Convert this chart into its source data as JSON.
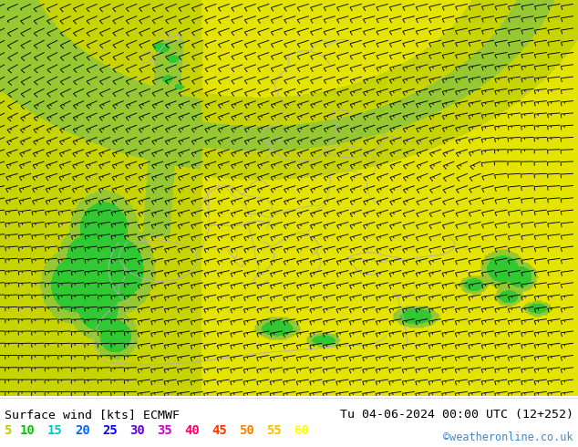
{
  "title_left": "Surface wind [kts] ECMWF",
  "title_right": "Tu 04-06-2024 00:00 UTC (12+252)",
  "credit": "©weatheronline.co.uk",
  "legend_values": [
    5,
    10,
    15,
    20,
    25,
    30,
    35,
    40,
    45,
    50,
    55,
    60
  ],
  "legend_colors": [
    "#c8c800",
    "#00c800",
    "#00c8c8",
    "#0064ff",
    "#0000ff",
    "#6400c8",
    "#c800c8",
    "#ff0064",
    "#ff3200",
    "#ff8200",
    "#ffbe00",
    "#ffff00"
  ],
  "color_levels": [
    0,
    5,
    10,
    15,
    20,
    25,
    30,
    35,
    40,
    45,
    50,
    55,
    60,
    200
  ],
  "color_list": [
    "#c8c800",
    "#7dc800",
    "#b4e632",
    "#e6e600",
    "#e6e600",
    "#e6e600",
    "#e6e600",
    "#e6e600",
    "#e6e600",
    "#e6e600",
    "#e6e600",
    "#e6e600",
    "#e6e600"
  ],
  "figsize": [
    6.34,
    4.9
  ],
  "dpi": 100,
  "font_family": "monospace",
  "map_yellow": "#e6e600",
  "map_light_green": "#b4e632",
  "map_green": "#32c832",
  "map_dark_green": "#009600",
  "map_cyan": "#00c8c8"
}
